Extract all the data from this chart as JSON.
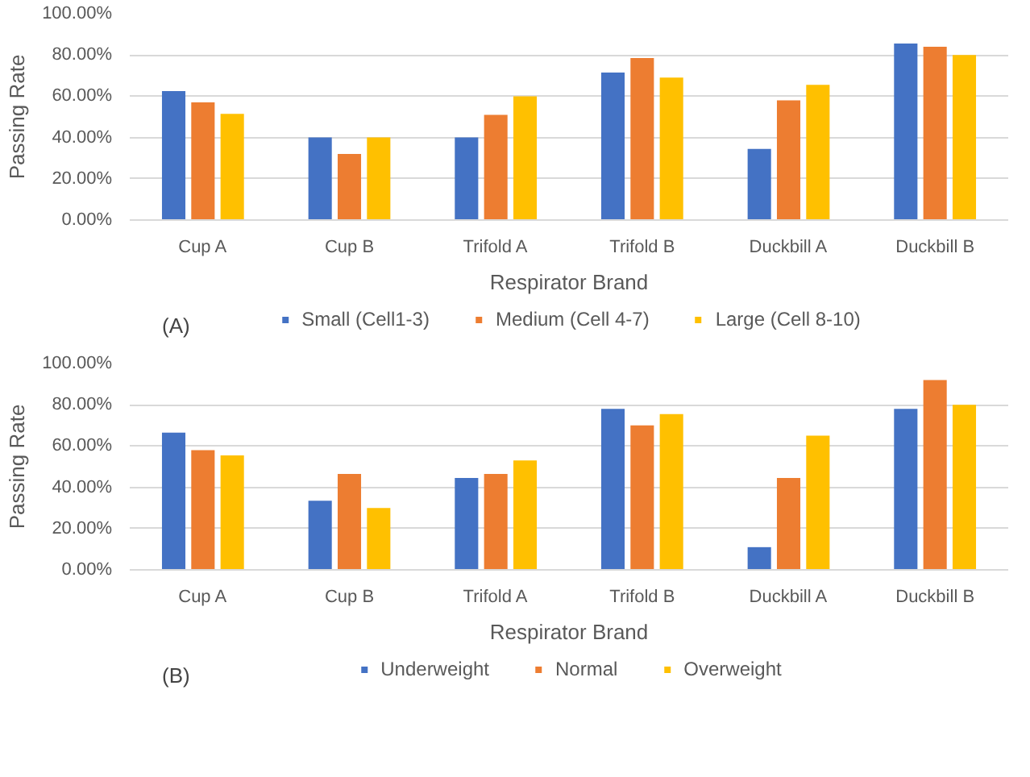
{
  "chart_data": [
    {
      "type": "bar",
      "xlabel": "Respirator Brand",
      "ylabel": "Passing Rate",
      "annotations": [
        "(A)"
      ],
      "categories": [
        "Cup A",
        "Cup B",
        "Trifold A",
        "Trifold B",
        "Duckbill A",
        "Duckbill B"
      ],
      "series": [
        {
          "name": "Small (Cell1-3)",
          "color": "#4472c4",
          "values": [
            62.5,
            40,
            40,
            71.5,
            34.5,
            85.5
          ]
        },
        {
          "name": "Medium (Cell 4-7)",
          "color": "#ed7d31",
          "values": [
            57,
            32,
            51,
            78.5,
            58,
            84
          ]
        },
        {
          "name": "Large (Cell 8-10)",
          "color": "#ffc000",
          "values": [
            51.5,
            40,
            60,
            69,
            65.5,
            80
          ]
        }
      ],
      "ylim": [
        0,
        100
      ],
      "yticks": [
        {
          "value": 0,
          "label": "0.00%"
        },
        {
          "value": 20,
          "label": "20.00%"
        },
        {
          "value": 40,
          "label": "40.00%"
        },
        {
          "value": 60,
          "label": "60.00%"
        },
        {
          "value": 80,
          "label": "80.00%"
        },
        {
          "value": 100,
          "label": "100.00%"
        }
      ],
      "grid": "y",
      "legend": "bottom"
    },
    {
      "type": "bar",
      "xlabel": "Respirator Brand",
      "ylabel": "Passing Rate",
      "annotations": [
        "(B)"
      ],
      "categories": [
        "Cup A",
        "Cup B",
        "Trifold A",
        "Trifold B",
        "Duckbill A",
        "Duckbill B"
      ],
      "series": [
        {
          "name": "Underweight",
          "color": "#4472c4",
          "values": [
            66.5,
            33.5,
            44.5,
            78,
            11,
            78
          ]
        },
        {
          "name": "Normal",
          "color": "#ed7d31",
          "values": [
            58,
            46.5,
            46.5,
            70,
            44.5,
            92
          ]
        },
        {
          "name": "Overweight",
          "color": "#ffc000",
          "values": [
            55.5,
            30,
            53,
            75.5,
            65,
            80
          ]
        }
      ],
      "ylim": [
        0,
        100
      ],
      "yticks": [
        {
          "value": 0,
          "label": "0.00%"
        },
        {
          "value": 20,
          "label": "20.00%"
        },
        {
          "value": 40,
          "label": "40.00%"
        },
        {
          "value": 60,
          "label": "60.00%"
        },
        {
          "value": 80,
          "label": "80.00%"
        },
        {
          "value": 100,
          "label": "100.00%"
        }
      ],
      "grid": "y",
      "legend": "bottom"
    }
  ]
}
